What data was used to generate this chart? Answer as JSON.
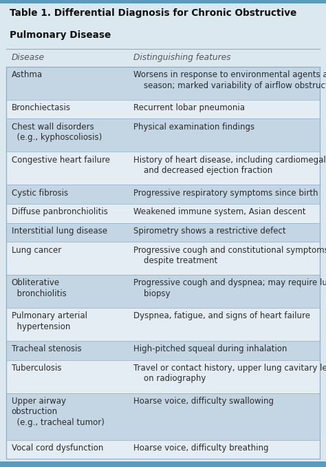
{
  "title_line1": "Table 1. Differential Diagnosis for Chronic Obstructive",
  "title_line2": "Pulmonary Disease",
  "header": [
    "Disease",
    "Distinguishing features"
  ],
  "rows": [
    {
      "disease": "Asthma",
      "feature": "Worsens in response to environmental agents and\n    season; marked variability of airflow obstruction",
      "shaded": true,
      "d_lines": 1,
      "f_lines": 2
    },
    {
      "disease": "Bronchiectasis",
      "feature": "Recurrent lobar pneumonia",
      "shaded": false,
      "d_lines": 1,
      "f_lines": 1
    },
    {
      "disease": "Chest wall disorders\n  (e.g., kyphoscoliosis)",
      "feature": "Physical examination findings",
      "shaded": true,
      "d_lines": 2,
      "f_lines": 1
    },
    {
      "disease": "Congestive heart failure",
      "feature": "History of heart disease, including cardiomegaly\n    and decreased ejection fraction",
      "shaded": false,
      "d_lines": 1,
      "f_lines": 2
    },
    {
      "disease": "Cystic fibrosis",
      "feature": "Progressive respiratory symptoms since birth",
      "shaded": true,
      "d_lines": 1,
      "f_lines": 1
    },
    {
      "disease": "Diffuse panbronchiolitis",
      "feature": "Weakened immune system, Asian descent",
      "shaded": false,
      "d_lines": 1,
      "f_lines": 1
    },
    {
      "disease": "Interstitial lung disease",
      "feature": "Spirometry shows a restrictive defect",
      "shaded": true,
      "d_lines": 1,
      "f_lines": 1
    },
    {
      "disease": "Lung cancer",
      "feature": "Progressive cough and constitutional symptoms\n    despite treatment",
      "shaded": false,
      "d_lines": 1,
      "f_lines": 2
    },
    {
      "disease": "Obliterative\n  bronchiolitis",
      "feature": "Progressive cough and dyspnea; may require lung\n    biopsy",
      "shaded": true,
      "d_lines": 2,
      "f_lines": 2
    },
    {
      "disease": "Pulmonary arterial\n  hypertension",
      "feature": "Dyspnea, fatigue, and signs of heart failure",
      "shaded": false,
      "d_lines": 2,
      "f_lines": 1
    },
    {
      "disease": "Tracheal stenosis",
      "feature": "High-pitched squeal during inhalation",
      "shaded": true,
      "d_lines": 1,
      "f_lines": 1
    },
    {
      "disease": "Tuberculosis",
      "feature": "Travel or contact history, upper lung cavitary lesion\n    on radiography",
      "shaded": false,
      "d_lines": 1,
      "f_lines": 2
    },
    {
      "disease": "Upper airway\nobstruction\n  (e.g., tracheal tumor)",
      "feature": "Hoarse voice, difficulty swallowing",
      "shaded": true,
      "d_lines": 3,
      "f_lines": 1
    },
    {
      "disease": "Vocal cord dysfunction",
      "feature": "Hoarse voice, difficulty breathing",
      "shaded": false,
      "d_lines": 1,
      "f_lines": 1
    }
  ],
  "bg_color": "#dce8f0",
  "shaded_color": "#c4d6e4",
  "unshaded_color": "#e4edf4",
  "border_color": "#8aafc4",
  "title_color": "#111111",
  "header_text_color": "#555555",
  "row_text_color": "#2a2a2a",
  "top_bar_color": "#5b9aba",
  "bottom_bar_color": "#5b9aba",
  "title_fontsize": 9.8,
  "header_fontsize": 8.8,
  "row_fontsize": 8.5,
  "col_split": 0.385
}
